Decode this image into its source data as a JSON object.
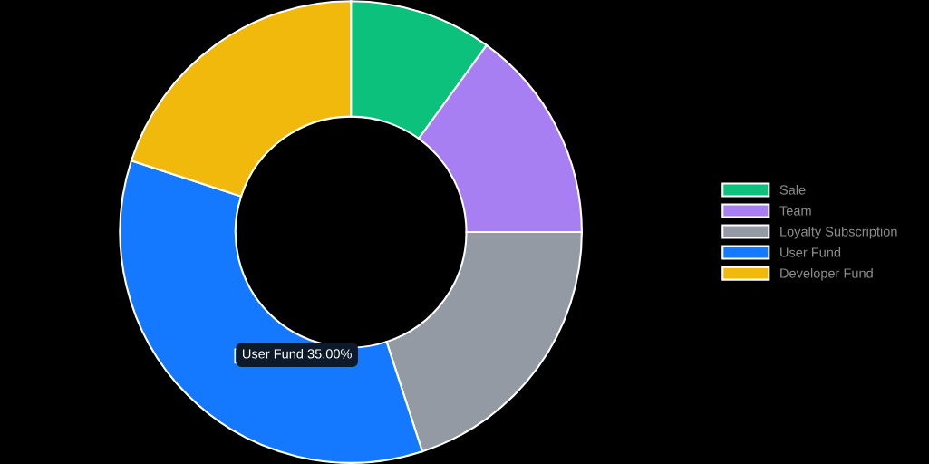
{
  "chart_data": {
    "type": "donut",
    "categories": [
      "Sale",
      "Team",
      "Loyalty Subscription",
      "User Fund",
      "Developer Fund"
    ],
    "values": [
      10,
      15,
      20,
      35,
      20
    ],
    "colors": [
      "#0bc17b",
      "#a77ff3",
      "#939aa3",
      "#1479fe",
      "#f0b90c"
    ],
    "legend": "right",
    "annotations": [
      "User Fund 35.00%"
    ]
  }
}
